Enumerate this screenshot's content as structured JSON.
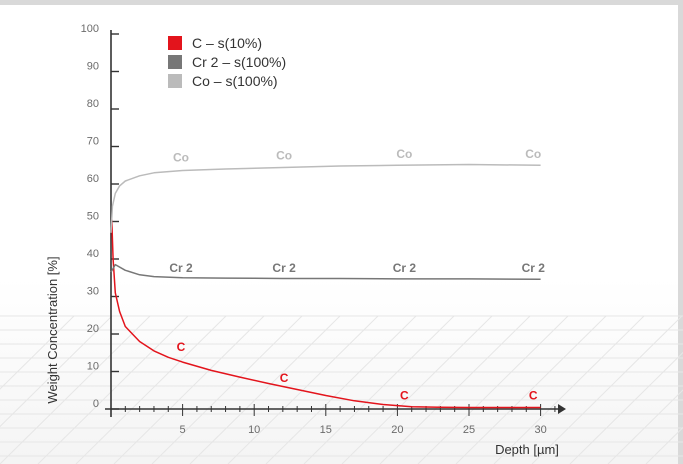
{
  "chart_data": {
    "type": "line",
    "title": "",
    "xlabel": "Depth [µm]",
    "ylabel": "Weight Concentration [%]",
    "xlim": [
      0,
      32
    ],
    "ylim": [
      0,
      100
    ],
    "x_ticks": [
      5,
      10,
      15,
      20,
      25,
      30
    ],
    "y_ticks": [
      0,
      10,
      20,
      30,
      40,
      50,
      60,
      70,
      80,
      90,
      100
    ],
    "legend_position": "top-left",
    "grid": false,
    "series": [
      {
        "name": "C – s(10%)",
        "color": "#e3141c",
        "label_text": "C",
        "x": [
          0.05,
          0.15,
          0.3,
          0.6,
          1,
          2,
          3,
          4,
          5,
          7,
          9,
          11,
          13,
          15,
          17,
          19,
          21,
          23,
          25,
          27,
          29,
          30
        ],
        "y": [
          51,
          40,
          31,
          26,
          22,
          18,
          15.5,
          13.8,
          12.5,
          10.3,
          8.5,
          6.8,
          5.2,
          3.6,
          2.2,
          1.2,
          0.6,
          0.45,
          0.4,
          0.4,
          0.4,
          0.4
        ],
        "labels": [
          {
            "x": 0,
            "y": 15.5
          },
          {
            "x": 7.2,
            "y": 7.2
          },
          {
            "x": 15.6,
            "y": 2.5
          },
          {
            "x": 24.6,
            "y": 2.5
          }
        ]
      },
      {
        "name": "Cr 2 – s(100%)",
        "color": "#777777",
        "label_text": "Cr 2",
        "x": [
          0,
          0.3,
          1,
          2,
          3,
          5,
          8,
          12,
          16,
          20,
          25,
          30
        ],
        "y": [
          36.5,
          38.5,
          37,
          35.8,
          35.3,
          35,
          34.9,
          34.8,
          34.8,
          34.7,
          34.7,
          34.6
        ],
        "labels": [
          {
            "x": 0,
            "y": 36.5
          },
          {
            "x": 7.2,
            "y": 36.5
          },
          {
            "x": 15.6,
            "y": 36.5
          },
          {
            "x": 24.6,
            "y": 36.5
          }
        ]
      },
      {
        "name": "Co – s(100%)",
        "color": "#bbbbbb",
        "label_text": "Co",
        "x": [
          0,
          0.1,
          0.3,
          0.6,
          1,
          2,
          3,
          5,
          8,
          12,
          16,
          20,
          25,
          30
        ],
        "y": [
          47,
          54,
          57.5,
          59.5,
          60.8,
          62.2,
          63,
          63.6,
          64,
          64.4,
          64.8,
          65,
          65.2,
          65
        ],
        "labels": [
          {
            "x": 0,
            "y": 66
          },
          {
            "x": 7.2,
            "y": 66.5
          },
          {
            "x": 15.6,
            "y": 67
          },
          {
            "x": 24.6,
            "y": 67
          }
        ]
      }
    ]
  }
}
